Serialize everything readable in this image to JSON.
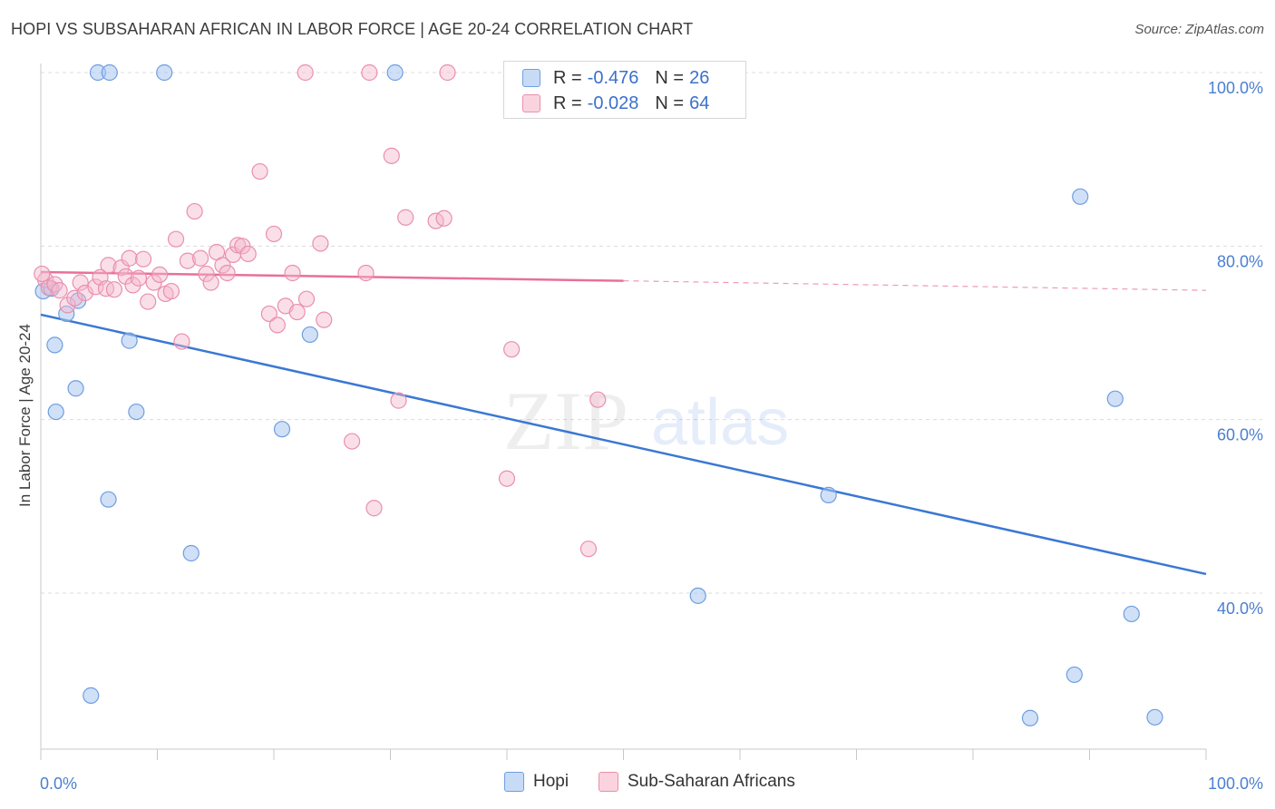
{
  "header": {
    "title": "HOPI VS SUBSAHARAN AFRICAN IN LABOR FORCE | AGE 20-24 CORRELATION CHART",
    "source": "Source: ZipAtlas.com"
  },
  "legend_box": {
    "rows": [
      {
        "r_label": "R =",
        "r_value": "-0.476",
        "n_label": "N =",
        "n_value": "26",
        "color": "#a9c6f0"
      },
      {
        "r_label": "R =",
        "r_value": "-0.028",
        "n_label": "N =",
        "n_value": "64",
        "color": "#f5b8cb"
      }
    ]
  },
  "bottom_legend": {
    "items": [
      {
        "label": "Hopi",
        "color": "#a9c6f0"
      },
      {
        "label": "Sub-Saharan Africans",
        "color": "#f5b8cb"
      }
    ]
  },
  "watermark": {
    "text_zip": "ZIP",
    "text_atlas": "atlas"
  },
  "chart_data": {
    "type": "scatter",
    "title": "HOPI VS SUBSAHARAN AFRICAN IN LABOR FORCE | AGE 20-24 CORRELATION CHART",
    "xlabel": "",
    "ylabel": "In Labor Force | Age 20-24",
    "xlim": [
      0,
      100
    ],
    "ylim": [
      20,
      102
    ],
    "x_tick_labels": [
      "0.0%",
      "100.0%"
    ],
    "y_ticks": [
      40,
      60,
      80,
      100
    ],
    "y_tick_labels": [
      "40.0%",
      "60.0%",
      "80.0%",
      "100.0%"
    ],
    "grid": true,
    "legend_placement": "top-center",
    "colors": {
      "hopi": "#3a78d4",
      "ssa": "#e8709a",
      "hopi_fill": "#a9c6f0",
      "ssa_fill": "#f5b8cb"
    },
    "series": [
      {
        "name": "Hopi",
        "color": "#3a78d4",
        "points": [
          [
            0.2,
            74.8
          ],
          [
            0.9,
            75.1
          ],
          [
            1.2,
            68.6
          ],
          [
            1.3,
            60.9
          ],
          [
            2.2,
            72.2
          ],
          [
            3.0,
            63.6
          ],
          [
            3.2,
            73.7
          ],
          [
            4.3,
            28.2
          ],
          [
            4.9,
            100.0
          ],
          [
            5.9,
            100.0
          ],
          [
            5.8,
            50.8
          ],
          [
            7.6,
            69.1
          ],
          [
            8.2,
            60.9
          ],
          [
            10.6,
            100.0
          ],
          [
            12.9,
            44.6
          ],
          [
            20.7,
            58.9
          ],
          [
            23.1,
            69.8
          ],
          [
            30.4,
            100.0
          ],
          [
            67.6,
            51.3
          ],
          [
            56.4,
            39.7
          ],
          [
            89.2,
            85.7
          ],
          [
            92.2,
            62.4
          ],
          [
            93.6,
            37.6
          ],
          [
            88.7,
            30.6
          ],
          [
            84.9,
            25.6
          ],
          [
            95.6,
            25.7
          ]
        ],
        "trend": {
          "x": [
            0,
            100
          ],
          "y": [
            72.1,
            42.2
          ]
        }
      },
      {
        "name": "Sub-Saharan Africans",
        "color": "#e8709a",
        "points": [
          [
            0.4,
            76.1
          ],
          [
            0.7,
            75.2
          ],
          [
            1.2,
            75.6
          ],
          [
            1.6,
            74.9
          ],
          [
            2.3,
            73.2
          ],
          [
            2.9,
            74.0
          ],
          [
            3.4,
            75.8
          ],
          [
            3.8,
            74.6
          ],
          [
            4.7,
            75.3
          ],
          [
            5.1,
            76.4
          ],
          [
            5.6,
            75.1
          ],
          [
            5.8,
            77.8
          ],
          [
            6.3,
            75.0
          ],
          [
            6.9,
            77.5
          ],
          [
            7.3,
            76.5
          ],
          [
            7.6,
            78.6
          ],
          [
            7.9,
            75.5
          ],
          [
            8.4,
            76.3
          ],
          [
            8.8,
            78.5
          ],
          [
            9.2,
            73.6
          ],
          [
            9.7,
            75.8
          ],
          [
            10.2,
            76.7
          ],
          [
            10.7,
            74.5
          ],
          [
            11.2,
            74.8
          ],
          [
            11.6,
            80.8
          ],
          [
            12.1,
            69.0
          ],
          [
            12.6,
            78.3
          ],
          [
            13.2,
            84.0
          ],
          [
            13.7,
            78.6
          ],
          [
            14.2,
            76.8
          ],
          [
            14.6,
            75.8
          ],
          [
            15.1,
            79.3
          ],
          [
            15.6,
            77.8
          ],
          [
            16.0,
            76.9
          ],
          [
            16.5,
            79.0
          ],
          [
            16.9,
            80.1
          ],
          [
            17.3,
            80.0
          ],
          [
            17.8,
            79.1
          ],
          [
            18.8,
            88.6
          ],
          [
            19.6,
            72.2
          ],
          [
            20.0,
            81.4
          ],
          [
            20.3,
            70.9
          ],
          [
            21.0,
            73.1
          ],
          [
            21.6,
            76.9
          ],
          [
            22.0,
            72.4
          ],
          [
            22.8,
            73.9
          ],
          [
            24.0,
            80.3
          ],
          [
            24.3,
            71.5
          ],
          [
            26.7,
            57.5
          ],
          [
            27.9,
            76.9
          ],
          [
            28.2,
            100.0
          ],
          [
            28.6,
            49.8
          ],
          [
            30.1,
            90.4
          ],
          [
            30.7,
            62.2
          ],
          [
            31.3,
            83.3
          ],
          [
            33.9,
            82.9
          ],
          [
            34.6,
            83.2
          ],
          [
            34.9,
            100.0
          ],
          [
            22.7,
            100.0
          ],
          [
            40.0,
            53.2
          ],
          [
            40.4,
            68.1
          ],
          [
            47.0,
            45.1
          ],
          [
            47.8,
            62.3
          ],
          [
            0.1,
            76.8
          ]
        ],
        "trend": {
          "x": [
            0,
            50
          ],
          "y": [
            77.0,
            76.0
          ]
        },
        "trend_dashed": {
          "x": [
            50,
            100
          ],
          "y": [
            76.0,
            74.9
          ]
        }
      }
    ]
  }
}
